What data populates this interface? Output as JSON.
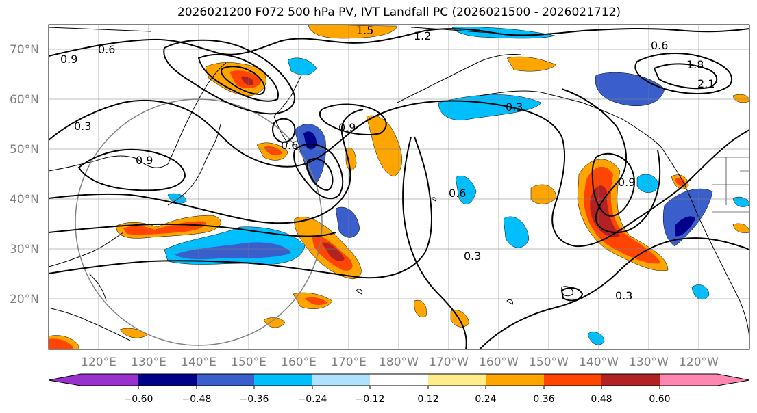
{
  "title": "2026021200 F072 500 hPa PV, IVT Landfall PC (2026021500 - 2026021712)",
  "lat_labels": [
    "70°N",
    "60°N",
    "50°N",
    "40°N",
    "30°N",
    "20°N"
  ],
  "lon_labels": [
    "120°E",
    "130°E",
    "140°E",
    "150°E",
    "160°E",
    "170°E",
    "180°W",
    "170°W",
    "160°W",
    "150°W",
    "140°W",
    "130°W",
    "120°W"
  ],
  "colorbar": {
    "labels": [
      "−0.60",
      "−0.48",
      "−0.36",
      "−0.24",
      "−0.12",
      "0.12",
      "0.24",
      "0.36",
      "0.48",
      "0.60"
    ],
    "colors": [
      "#9932cc",
      "#00008b",
      "#3a5fcd",
      "#00bfff",
      "#b0e2ff",
      "#ffffff",
      "#ffec8b",
      "#ffa500",
      "#ff4500",
      "#b22222",
      "#ff86b0"
    ]
  },
  "contour_labels": [
    "0.6",
    "0.9",
    "1.5",
    "1.2",
    "0.3",
    "0.9",
    "0.6",
    "1.8",
    "2.1",
    "0.3",
    "0.9",
    "0.6",
    "0.3",
    "0.9",
    "0.3",
    "0.6"
  ],
  "colors": {
    "neg_strong": "#00008b",
    "neg_med": "#3a5fcd",
    "neg_light": "#00bfff",
    "pos_light": "#ffa500",
    "pos_med": "#ff4500",
    "pos_strong": "#b22222",
    "pos_pale": "#ffec8b"
  }
}
